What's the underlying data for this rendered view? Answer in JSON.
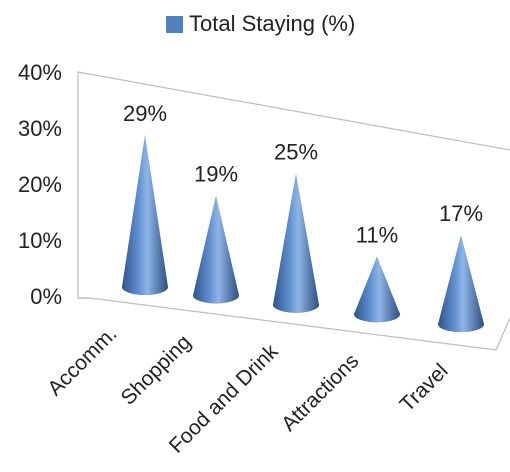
{
  "chart_data": {
    "type": "bar",
    "style": "3d-cone",
    "categories": [
      "Accomm.",
      "Shopping",
      "Food and Drink",
      "Attractions",
      "Travel"
    ],
    "series": [
      {
        "name": "Total Staying (%)",
        "values": [
          29,
          19,
          25,
          11,
          17
        ]
      }
    ],
    "data_labels": [
      "29%",
      "19%",
      "25%",
      "11%",
      "17%"
    ],
    "yticks": [
      "0%",
      "10%",
      "20%",
      "30%",
      "40%"
    ],
    "ylim": [
      0,
      40
    ],
    "legend_position": "top",
    "grid": false,
    "series_color": "#4f81bd"
  }
}
